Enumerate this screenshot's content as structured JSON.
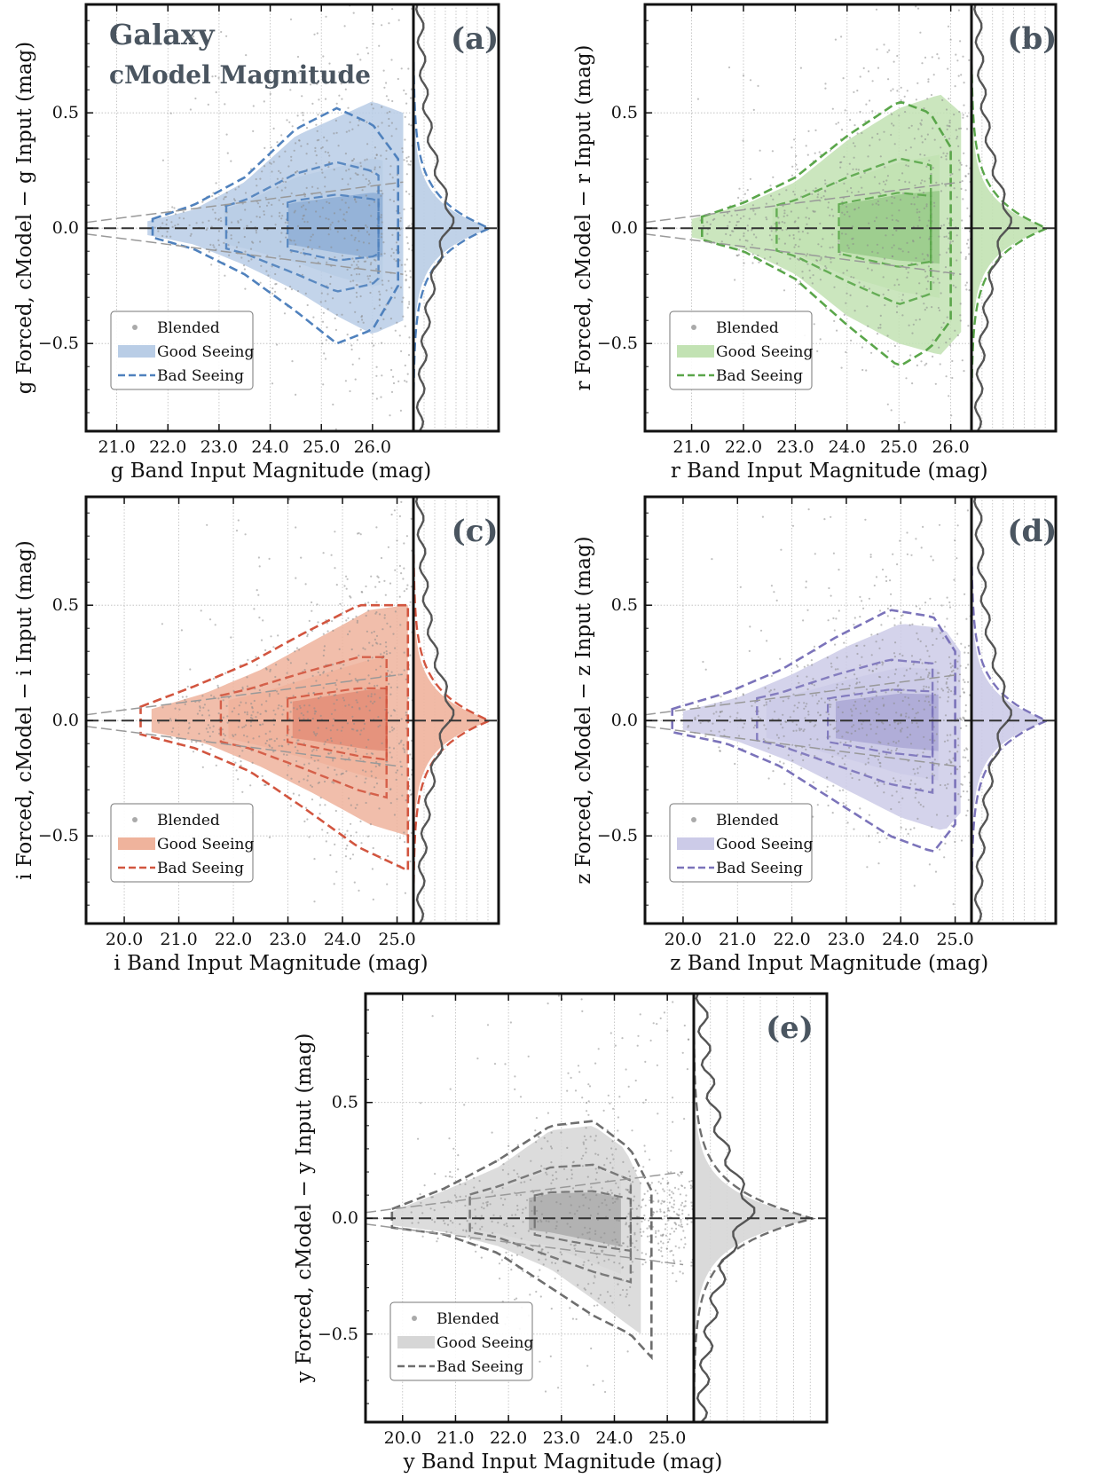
{
  "figure": {
    "header_line1": "Galaxy",
    "header_line2": "cModel Magnitude"
  },
  "legend": {
    "blended": "Blended",
    "good_seeing": "Good Seeing",
    "bad_seeing": "Bad Seeing"
  },
  "chart_data": [
    {
      "type": "scatter",
      "panel": "(a)",
      "band": "g",
      "color": "#4f81bd",
      "fill": "#b9cde6",
      "xlabel": "g Band Input Magnitude (mag)",
      "ylabel": "g Forced, cModel − g Input (mag)",
      "xlim": [
        20.4,
        26.8
      ],
      "ylim": [
        -0.88,
        0.97
      ],
      "xticks": [
        "21.0",
        "22.0",
        "23.0",
        "24.0",
        "25.0",
        "26.0"
      ],
      "xtick_values": [
        21,
        22,
        23,
        24,
        25,
        26
      ],
      "yticks": [
        "−0.5",
        "0.0",
        "0.5"
      ],
      "ytick_values": [
        -0.5,
        0,
        0.5
      ],
      "good_seeing_envelope": {
        "x": [
          21.6,
          22.5,
          23.5,
          24.5,
          25.3,
          26.0,
          26.6
        ],
        "upper": [
          0.03,
          0.08,
          0.2,
          0.4,
          0.48,
          0.55,
          0.5
        ],
        "lower": [
          -0.03,
          -0.07,
          -0.16,
          -0.27,
          -0.38,
          -0.46,
          -0.4
        ]
      },
      "bad_seeing_contour": {
        "x": [
          21.7,
          22.5,
          23.5,
          24.5,
          25.3,
          26.0,
          26.5
        ],
        "upper": [
          0.04,
          0.1,
          0.22,
          0.43,
          0.52,
          0.45,
          0.3
        ],
        "lower": [
          -0.04,
          -0.09,
          -0.2,
          -0.36,
          -0.5,
          -0.44,
          -0.25
        ]
      },
      "marginal_peak_good": 0.0,
      "marginal_peak_blended": 0.0
    },
    {
      "type": "scatter",
      "panel": "(b)",
      "band": "r",
      "color": "#5aa64a",
      "fill": "#c2e2b3",
      "xlabel": "r Band Input Magnitude (mag)",
      "ylabel": "r Forced, cModel − r Input (mag)",
      "xlim": [
        20.1,
        26.4
      ],
      "ylim": [
        -0.88,
        0.97
      ],
      "xticks": [
        "21.0",
        "22.0",
        "23.0",
        "24.0",
        "25.0",
        "26.0"
      ],
      "xtick_values": [
        21,
        22,
        23,
        24,
        25,
        26
      ],
      "yticks": [
        "−0.5",
        "0.0",
        "0.5"
      ],
      "ytick_values": [
        -0.5,
        0,
        0.5
      ],
      "good_seeing_envelope": {
        "x": [
          21.0,
          22.0,
          23.0,
          24.0,
          25.0,
          25.8,
          26.2
        ],
        "upper": [
          0.04,
          0.1,
          0.2,
          0.38,
          0.52,
          0.58,
          0.5
        ],
        "lower": [
          -0.04,
          -0.09,
          -0.2,
          -0.38,
          -0.5,
          -0.55,
          -0.45
        ]
      },
      "bad_seeing_contour": {
        "x": [
          21.2,
          22.0,
          23.0,
          24.0,
          25.0,
          25.6,
          26.0
        ],
        "upper": [
          0.05,
          0.11,
          0.22,
          0.4,
          0.55,
          0.5,
          0.35
        ],
        "lower": [
          -0.05,
          -0.1,
          -0.22,
          -0.42,
          -0.6,
          -0.52,
          -0.4
        ]
      },
      "marginal_peak_good": 0.0,
      "marginal_peak_blended": 0.0
    },
    {
      "type": "scatter",
      "panel": "(c)",
      "band": "i",
      "color": "#d2553f",
      "fill": "#efb39c",
      "xlabel": "i Band Input Magnitude (mag)",
      "ylabel": "i Forced, cModel − i Input (mag)",
      "xlim": [
        19.3,
        25.3
      ],
      "ylim": [
        -0.88,
        0.97
      ],
      "xticks": [
        "20.0",
        "21.0",
        "22.0",
        "23.0",
        "24.0",
        "25.0"
      ],
      "xtick_values": [
        20,
        21,
        22,
        23,
        24,
        25
      ],
      "yticks": [
        "−0.5",
        "0.0",
        "0.5"
      ],
      "ytick_values": [
        -0.5,
        0,
        0.5
      ],
      "good_seeing_envelope": {
        "x": [
          20.5,
          21.5,
          22.5,
          23.5,
          24.5,
          25.2
        ],
        "upper": [
          0.05,
          0.12,
          0.22,
          0.35,
          0.48,
          0.5
        ],
        "lower": [
          -0.05,
          -0.1,
          -0.2,
          -0.32,
          -0.45,
          -0.5
        ]
      },
      "bad_seeing_contour": {
        "x": [
          20.3,
          21.3,
          22.3,
          23.3,
          24.3,
          25.2
        ],
        "upper": [
          0.06,
          0.15,
          0.25,
          0.38,
          0.5,
          0.5
        ],
        "lower": [
          -0.06,
          -0.12,
          -0.22,
          -0.38,
          -0.55,
          -0.65
        ]
      },
      "marginal_peak_good": 0.0,
      "marginal_peak_blended": 0.0
    },
    {
      "type": "scatter",
      "panel": "(d)",
      "band": "z",
      "color": "#7b73ba",
      "fill": "#cccbe8",
      "xlabel": "z Band Input Magnitude (mag)",
      "ylabel": "z Forced, cModel − z Input (mag)",
      "xlim": [
        19.3,
        25.3
      ],
      "ylim": [
        -0.88,
        0.97
      ],
      "xticks": [
        "20.0",
        "21.0",
        "22.0",
        "23.0",
        "24.0",
        "25.0"
      ],
      "xtick_values": [
        20,
        21,
        22,
        23,
        24,
        25
      ],
      "yticks": [
        "−0.5",
        "0.0",
        "0.5"
      ],
      "ytick_values": [
        -0.5,
        0,
        0.5
      ],
      "good_seeing_envelope": {
        "x": [
          20.0,
          21.0,
          22.0,
          23.0,
          24.0,
          24.8,
          25.1
        ],
        "upper": [
          0.04,
          0.1,
          0.2,
          0.32,
          0.42,
          0.4,
          0.3
        ],
        "lower": [
          -0.04,
          -0.09,
          -0.18,
          -0.3,
          -0.42,
          -0.48,
          -0.4
        ]
      },
      "bad_seeing_contour": {
        "x": [
          19.8,
          20.8,
          21.8,
          22.8,
          23.8,
          24.6,
          25.0
        ],
        "upper": [
          0.05,
          0.12,
          0.22,
          0.36,
          0.48,
          0.45,
          0.3
        ],
        "lower": [
          -0.05,
          -0.1,
          -0.2,
          -0.35,
          -0.5,
          -0.57,
          -0.45
        ]
      },
      "marginal_peak_good": 0.0,
      "marginal_peak_blended": 0.0
    },
    {
      "type": "scatter",
      "panel": "(e)",
      "band": "y",
      "color": "#6e6e6e",
      "fill": "#d6d6d6",
      "xlabel": "y Band Input Magnitude (mag)",
      "ylabel": "y Forced, cModel − y Input (mag)",
      "xlim": [
        19.3,
        25.5
      ],
      "ylim": [
        -0.88,
        0.97
      ],
      "xticks": [
        "20.0",
        "21.0",
        "22.0",
        "23.0",
        "24.0",
        "25.0"
      ],
      "xtick_values": [
        20,
        21,
        22,
        23,
        24,
        25
      ],
      "yticks": [
        "−0.5",
        "0.0",
        "0.5"
      ],
      "ytick_values": [
        -0.5,
        0,
        0.5
      ],
      "good_seeing_envelope": {
        "x": [
          19.8,
          20.8,
          21.8,
          22.8,
          23.6,
          24.2,
          24.5
        ],
        "upper": [
          0.03,
          0.12,
          0.22,
          0.38,
          0.4,
          0.3,
          0.15
        ],
        "lower": [
          -0.03,
          -0.06,
          -0.12,
          -0.22,
          -0.35,
          -0.45,
          -0.5
        ]
      },
      "bad_seeing_contour": {
        "x": [
          19.8,
          20.8,
          21.8,
          22.8,
          23.6,
          24.3,
          24.7
        ],
        "upper": [
          0.04,
          0.13,
          0.25,
          0.4,
          0.42,
          0.3,
          0.12
        ],
        "lower": [
          -0.04,
          -0.07,
          -0.15,
          -0.3,
          -0.42,
          -0.5,
          -0.6
        ]
      },
      "marginal_peak_good": 0.0,
      "marginal_peak_blended": 0.0
    }
  ]
}
